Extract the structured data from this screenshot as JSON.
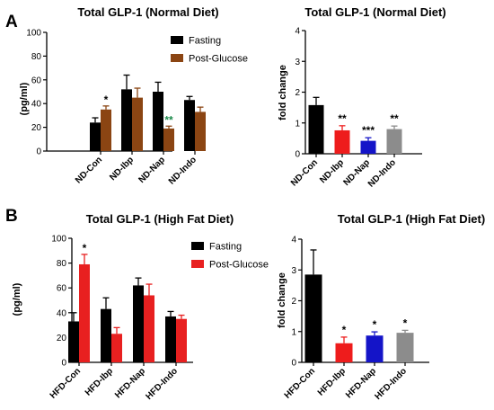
{
  "panels": {
    "A": "A",
    "B": "B"
  },
  "chart_data": [
    {
      "id": "A-left",
      "type": "bar",
      "title": "Total GLP-1 (Normal Diet)",
      "ylabel": "(pg/ml)",
      "ylim": [
        0,
        100
      ],
      "yticks": [
        "0",
        "20",
        "40",
        "60",
        "80",
        "100"
      ],
      "categories": [
        "ND-Con",
        "ND-Ibp",
        "ND-Nap",
        "ND-Indo"
      ],
      "legend_position": "top-right",
      "series": [
        {
          "name": "Fasting",
          "color": "#000000",
          "values": [
            24,
            52,
            50,
            43
          ],
          "errors": [
            4,
            12,
            8,
            3
          ]
        },
        {
          "name": "Post-Glucose",
          "color": "#8B4513",
          "values": [
            35,
            45,
            19,
            33
          ],
          "errors": [
            3,
            8,
            2,
            4
          ]
        }
      ],
      "annotations": [
        {
          "category": "ND-Con",
          "series": "Post-Glucose",
          "text": "*",
          "color": "#000000"
        },
        {
          "category": "ND-Nap",
          "series": "Post-Glucose",
          "text": "**",
          "color": "#1a8a4a"
        }
      ]
    },
    {
      "id": "A-right",
      "type": "bar",
      "title": "Total GLP-1 (Normal Diet)",
      "ylabel": "fold change",
      "ylim": [
        0,
        4
      ],
      "yticks": [
        "0",
        "1",
        "2",
        "3",
        "4"
      ],
      "categories": [
        "ND-Con",
        "ND-Ibp",
        "ND-Nap",
        "ND-Indo"
      ],
      "series": [
        {
          "name": "",
          "values": [
            1.58,
            0.76,
            0.42,
            0.8
          ],
          "errors": [
            0.25,
            0.15,
            0.1,
            0.1
          ],
          "colors": [
            "#000000",
            "#ee1c1c",
            "#1414c8",
            "#8c8c8c"
          ]
        }
      ],
      "annotations": [
        "",
        "**",
        "***",
        "**"
      ]
    },
    {
      "id": "B-left",
      "type": "bar",
      "title": "Total GLP-1 (High Fat Diet)",
      "ylabel": "(pg/ml)",
      "ylim": [
        0,
        100
      ],
      "yticks": [
        "0",
        "20",
        "40",
        "60",
        "80",
        "100"
      ],
      "categories": [
        "HFD-Con",
        "HFD-Ibp",
        "HFD-Nap",
        "HFD-Indo"
      ],
      "legend_position": "top-right",
      "series": [
        {
          "name": "Fasting",
          "color": "#000000",
          "values": [
            33,
            43,
            62,
            37
          ],
          "errors": [
            7,
            9,
            6,
            4
          ]
        },
        {
          "name": "Post-Glucose",
          "color": "#e82020",
          "values": [
            79,
            23,
            54,
            35
          ],
          "errors": [
            8,
            5,
            9,
            3
          ]
        }
      ],
      "annotations": [
        {
          "category": "HFD-Con",
          "series": "Post-Glucose",
          "text": "*",
          "color": "#000000"
        }
      ]
    },
    {
      "id": "B-right",
      "type": "bar",
      "title": "Total  GLP-1  (High Fat Diet)",
      "ylabel": "fold change",
      "ylim": [
        0,
        4
      ],
      "yticks": [
        "0",
        "1",
        "2",
        "3",
        "4"
      ],
      "categories": [
        "HFD-Con",
        "HFD-Ibp",
        "HFD-Nap",
        "HFD-Indo"
      ],
      "series": [
        {
          "name": "",
          "values": [
            2.85,
            0.62,
            0.87,
            0.96
          ],
          "errors": [
            0.8,
            0.2,
            0.12,
            0.08
          ],
          "colors": [
            "#000000",
            "#ee1c1c",
            "#1414c8",
            "#8c8c8c"
          ]
        }
      ],
      "annotations": [
        "",
        "*",
        "*",
        "*"
      ]
    }
  ]
}
